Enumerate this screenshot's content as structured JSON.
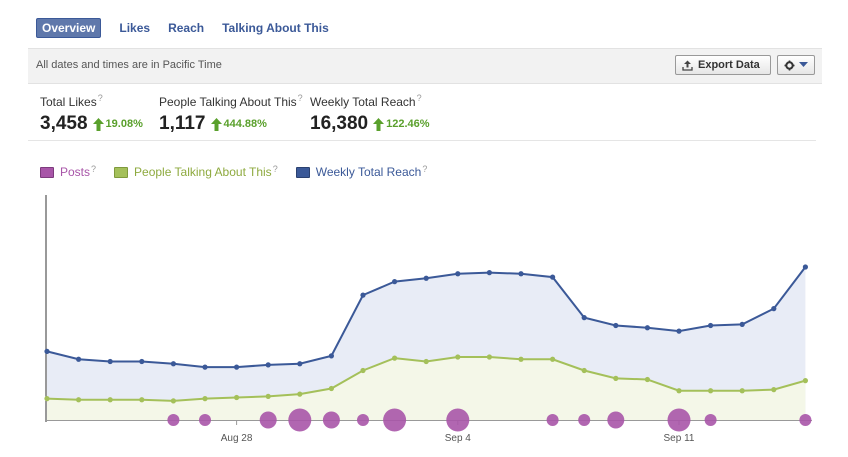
{
  "tabs": [
    {
      "label": "Overview",
      "active": true
    },
    {
      "label": "Likes",
      "active": false
    },
    {
      "label": "Reach",
      "active": false
    },
    {
      "label": "Talking About This",
      "active": false
    }
  ],
  "infobar": {
    "note": "All dates and times are in Pacific Time",
    "export_label": "Export Data",
    "gear_icon": "gear-icon"
  },
  "stats": [
    {
      "label": "Total Likes",
      "value": "3,458",
      "change": "19.08%"
    },
    {
      "label": "People Talking About This",
      "value": "1,117",
      "change": "444.88%"
    },
    {
      "label": "Weekly Total Reach",
      "value": "16,380",
      "change": "122.46%"
    }
  ],
  "help_mark": "?",
  "colors": {
    "posts": "#a855a8",
    "talking": "#a4c05a",
    "reach": "#3b5998",
    "reach_fill": "#e8ecf6",
    "talking_fill": "#f4f7e8",
    "up": "#5aa02c"
  },
  "chart_data": {
    "type": "line",
    "legend": [
      "Posts",
      "People Talking About This",
      "Weekly Total Reach"
    ],
    "x_ticks": [
      "Aug 28",
      "Sep 4",
      "Sep 11"
    ],
    "x_tick_index": [
      6,
      13,
      20
    ],
    "ylim": [
      0,
      200
    ],
    "series": [
      {
        "name": "Weekly Total Reach",
        "values": [
          61,
          54,
          52,
          52,
          50,
          47,
          47,
          49,
          50,
          57,
          111,
          123,
          126,
          130,
          131,
          130,
          127,
          91,
          84,
          82,
          79,
          84,
          85,
          99,
          136
        ]
      },
      {
        "name": "People Talking About This",
        "values": [
          19,
          18,
          18,
          18,
          17,
          19,
          20,
          21,
          23,
          28,
          44,
          55,
          52,
          56,
          56,
          54,
          54,
          44,
          37,
          36,
          26,
          26,
          26,
          27,
          35
        ]
      }
    ],
    "posts": [
      0,
      0,
      0,
      0,
      1,
      1,
      0,
      2,
      3,
      2,
      1,
      3,
      0,
      3,
      0,
      0,
      1,
      1,
      2,
      0,
      3,
      1,
      0,
      0,
      1
    ]
  }
}
